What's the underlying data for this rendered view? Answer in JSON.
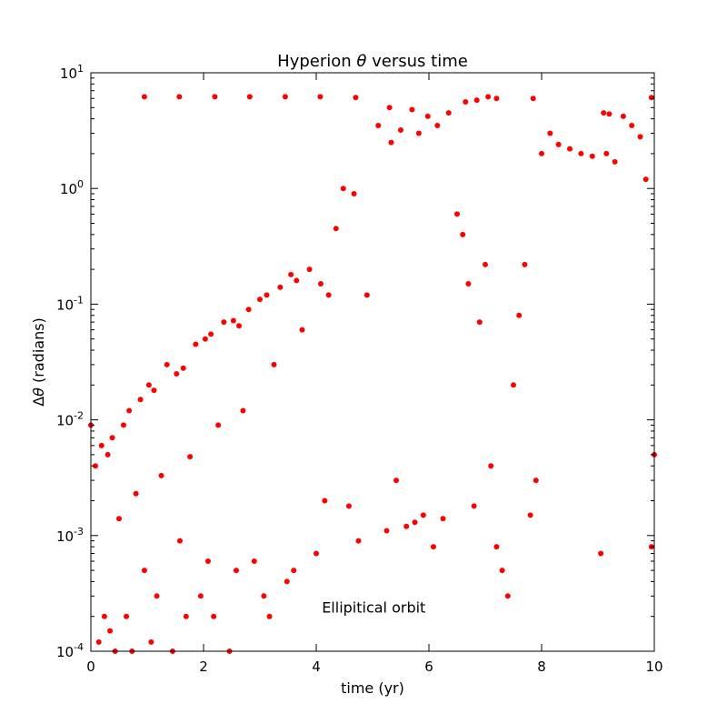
{
  "chart_data": {
    "type": "scatter",
    "title_prefix": "Hyperion ",
    "title_symbol": "θ",
    "title_suffix": " versus time",
    "xlabel": "time (yr)",
    "ylabel_prefix": "Δ",
    "ylabel_symbol": "θ",
    "ylabel_suffix": " (radians)",
    "xlim": [
      0,
      10
    ],
    "ylim": [
      0.0001,
      10
    ],
    "yscale": "log",
    "grid": false,
    "x_ticks": [
      {
        "value": 0,
        "label": "0"
      },
      {
        "value": 2,
        "label": "2"
      },
      {
        "value": 4,
        "label": "4"
      },
      {
        "value": 6,
        "label": "6"
      },
      {
        "value": 8,
        "label": "8"
      },
      {
        "value": 10,
        "label": "10"
      }
    ],
    "y_ticks": [
      {
        "value": 0.0001,
        "base": "10",
        "exp": "-4"
      },
      {
        "value": 0.001,
        "base": "10",
        "exp": "-3"
      },
      {
        "value": 0.01,
        "base": "10",
        "exp": "-2"
      },
      {
        "value": 0.1,
        "base": "10",
        "exp": "-1"
      },
      {
        "value": 1,
        "base": "10",
        "exp": "0"
      },
      {
        "value": 10,
        "base": "10",
        "exp": "1"
      }
    ],
    "annotation": {
      "text": "Ellipitical orbit",
      "x": 4.1,
      "y": 0.0002
    },
    "series": [
      {
        "color": "#ff0000",
        "x": [
          0.0,
          0.08,
          0.14,
          0.19,
          0.24,
          0.3,
          0.34,
          0.38,
          0.43,
          0.5,
          0.58,
          0.63,
          0.68,
          0.73,
          0.8,
          0.88,
          0.95,
          1.03,
          1.07,
          1.12,
          1.17,
          1.25,
          1.35,
          1.45,
          1.52,
          1.58,
          1.64,
          1.69,
          1.76,
          1.86,
          1.95,
          2.03,
          2.08,
          2.13,
          2.18,
          2.26,
          2.36,
          2.46,
          2.53,
          2.58,
          2.63,
          2.7,
          2.8,
          2.9,
          3.0,
          3.07,
          3.12,
          3.17,
          3.25,
          3.36,
          3.48,
          3.55,
          3.6,
          3.65,
          3.75,
          3.88,
          4.0,
          4.08,
          4.15,
          4.22,
          4.35,
          4.48,
          4.58,
          4.67,
          4.75,
          4.9,
          5.1,
          5.25,
          5.33,
          5.42,
          5.5,
          5.6,
          5.7,
          5.75,
          5.82,
          5.9,
          5.98,
          6.08,
          6.15,
          6.25,
          6.35,
          6.5,
          6.6,
          6.7,
          6.8,
          6.9,
          7.0,
          7.1,
          7.2,
          7.3,
          7.4,
          7.5,
          7.6,
          7.7,
          7.8,
          7.9,
          8.0,
          8.15,
          8.3,
          8.5,
          8.7,
          8.9,
          9.05,
          9.15,
          9.3,
          9.45,
          9.6,
          9.75,
          9.85,
          9.95,
          10.0,
          0.95,
          1.57,
          2.2,
          2.82,
          3.45,
          4.07,
          4.7,
          5.3,
          6.65,
          6.85,
          7.05,
          7.2,
          7.85,
          9.1,
          9.2,
          9.95
        ],
        "y": [
          0.009,
          0.004,
          0.00012,
          0.006,
          0.0002,
          0.005,
          0.00015,
          0.007,
          0.0001,
          0.0014,
          0.009,
          0.0002,
          0.012,
          0.0001,
          0.0023,
          0.015,
          0.0005,
          0.02,
          0.00012,
          0.018,
          0.0003,
          0.0033,
          0.03,
          0.0001,
          0.025,
          0.0009,
          0.028,
          0.0002,
          0.0048,
          0.045,
          0.0003,
          0.05,
          0.0006,
          0.055,
          0.0002,
          0.009,
          0.07,
          0.0001,
          0.072,
          0.0005,
          0.065,
          0.012,
          0.09,
          0.0006,
          0.11,
          0.0003,
          0.12,
          0.0002,
          0.03,
          0.14,
          0.0004,
          0.18,
          0.0005,
          0.16,
          0.06,
          0.2,
          0.0007,
          0.15,
          0.002,
          0.12,
          0.45,
          1.0,
          0.0018,
          0.9,
          0.0009,
          0.12,
          3.5,
          0.0011,
          2.5,
          0.003,
          3.2,
          0.0012,
          4.8,
          0.0013,
          3.0,
          0.0015,
          4.2,
          0.0008,
          3.5,
          0.0014,
          4.5,
          0.6,
          0.4,
          0.15,
          0.0018,
          0.07,
          0.22,
          0.004,
          0.0008,
          0.0005,
          0.0003,
          0.02,
          0.08,
          0.22,
          0.0015,
          0.003,
          2.0,
          3.0,
          2.4,
          2.2,
          2.0,
          1.9,
          0.0007,
          2.0,
          1.7,
          4.2,
          3.5,
          2.8,
          1.2,
          0.0008,
          0.005,
          6.2,
          6.2,
          6.2,
          6.2,
          6.2,
          6.2,
          6.1,
          5.0,
          5.6,
          5.8,
          6.2,
          6.0,
          6.0,
          4.5,
          4.4,
          6.1
        ]
      }
    ]
  }
}
